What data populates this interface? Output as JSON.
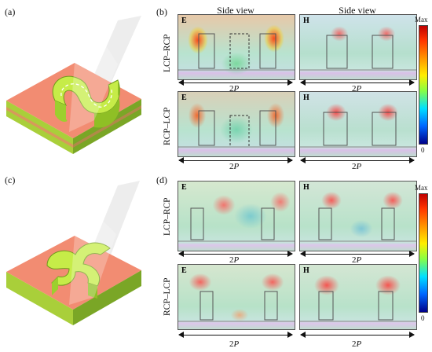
{
  "panel_labels": {
    "a": "(a)",
    "b": "(b)",
    "c": "(c)",
    "d": "(d)"
  },
  "column_headers": [
    "Side view",
    "Side view"
  ],
  "row_labels": {
    "b_top": "LCP–RCP",
    "b_bot": "RCP–LCP",
    "d_top": "LCP–RCP",
    "d_bot": "RCP–LCP"
  },
  "field_tags": {
    "e": "E",
    "h": "H"
  },
  "period_label": {
    "num": "2",
    "sym": "P"
  },
  "colorbar": {
    "max": "Max",
    "min": "0"
  },
  "colors": {
    "substrate_top": "#f08a74",
    "substrate_side_light": "#a9d13a",
    "substrate_side_dark": "#6f9a1c",
    "meta_atom": "#c8ef4a"
  }
}
